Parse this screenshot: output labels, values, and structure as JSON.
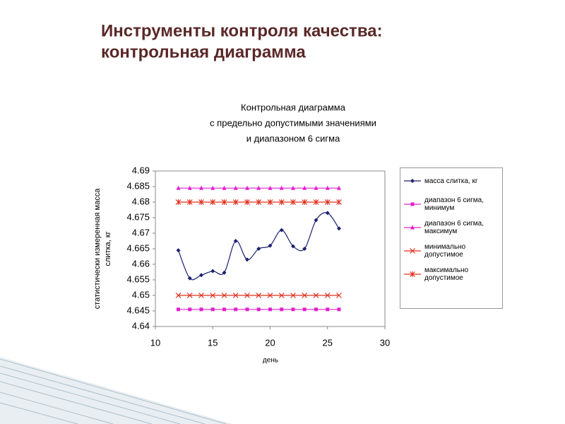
{
  "slide_title": [
    "Инструменты контроля качества:",
    "контрольная диаграмма"
  ],
  "chart_data": {
    "type": "line",
    "title": [
      "Контрольная диаграмма",
      "с предельно допустимыми значениями",
      "и диапазоном 6 сигма"
    ],
    "x_label": "день",
    "y_label": [
      "статистически измеренная масса",
      "слитка, кг"
    ],
    "x": [
      12,
      13,
      14,
      15,
      16,
      17,
      18,
      19,
      20,
      21,
      22,
      23,
      24,
      25,
      26
    ],
    "series": [
      {
        "name": "масса слитка, кг",
        "color": "#1c2270",
        "marker": "diamond",
        "smooth": true,
        "values": [
          4.6645,
          4.6555,
          4.6565,
          4.6578,
          4.6573,
          4.6675,
          4.6615,
          4.665,
          4.666,
          4.671,
          4.6658,
          4.665,
          4.6742,
          4.6765,
          4.6715
        ]
      },
      {
        "name": "диапазон 6 сигма, минимум",
        "color": "#e020d0",
        "marker": "square",
        "smooth": false,
        "values": [
          4.6455,
          4.6455,
          4.6455,
          4.6455,
          4.6455,
          4.6455,
          4.6455,
          4.6455,
          4.6455,
          4.6455,
          4.6455,
          4.6455,
          4.6455,
          4.6455,
          4.6455
        ]
      },
      {
        "name": "диапазон 6 сигма, максимум",
        "color": "#e020d0",
        "marker": "triangle",
        "smooth": false,
        "values": [
          4.6845,
          4.6845,
          4.6845,
          4.6845,
          4.6845,
          4.6845,
          4.6845,
          4.6845,
          4.6845,
          4.6845,
          4.6845,
          4.6845,
          4.6845,
          4.6845,
          4.6845
        ]
      },
      {
        "name": "минимально допустимое",
        "color": "#e0301e",
        "marker": "x",
        "smooth": false,
        "values": [
          4.65,
          4.65,
          4.65,
          4.65,
          4.65,
          4.65,
          4.65,
          4.65,
          4.65,
          4.65,
          4.65,
          4.65,
          4.65,
          4.65,
          4.65
        ]
      },
      {
        "name": "максимально допустимое",
        "color": "#e0301e",
        "marker": "star",
        "smooth": false,
        "values": [
          4.68,
          4.68,
          4.68,
          4.68,
          4.68,
          4.68,
          4.68,
          4.68,
          4.68,
          4.68,
          4.68,
          4.68,
          4.68,
          4.68,
          4.68
        ]
      }
    ],
    "xlim": [
      10,
      30
    ],
    "xticks": [
      10,
      15,
      20,
      25,
      30
    ],
    "ylim": [
      4.64,
      4.69
    ],
    "yticks": [
      4.64,
      4.645,
      4.65,
      4.655,
      4.66,
      4.665,
      4.67,
      4.675,
      4.68,
      4.685,
      4.69
    ],
    "grid": false,
    "legend": "right"
  }
}
